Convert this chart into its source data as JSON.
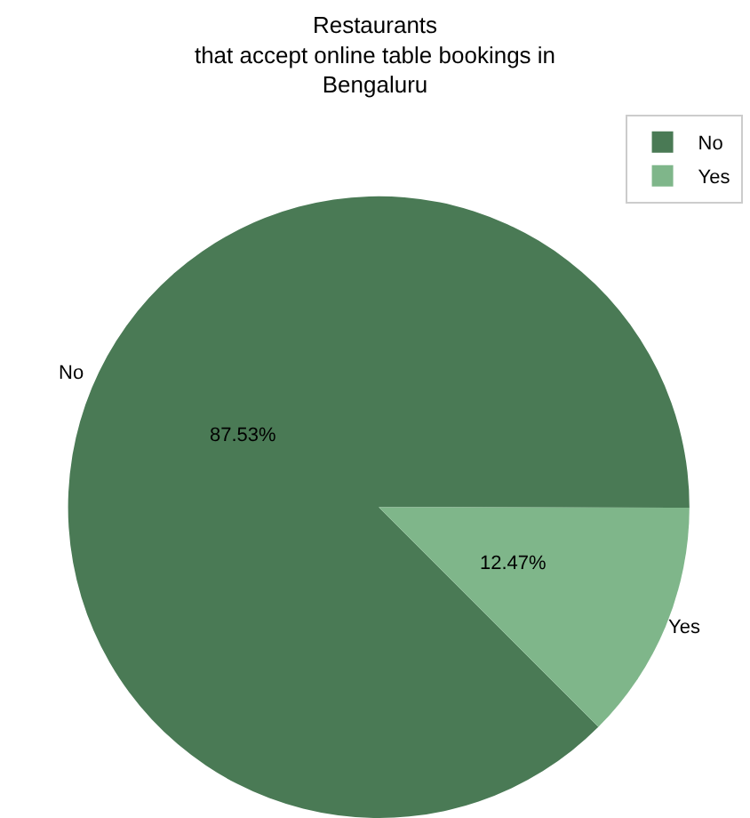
{
  "chart_data": {
    "type": "pie",
    "title": "Restaurants\nthat accept online table bookings in\nBengaluru",
    "categories": [
      "No",
      "Yes"
    ],
    "values": [
      87.53,
      12.47
    ],
    "value_labels": [
      "87.53%",
      "12.47%"
    ],
    "colors": [
      "#4a7a55",
      "#7fb68a"
    ],
    "legend": "top right"
  }
}
